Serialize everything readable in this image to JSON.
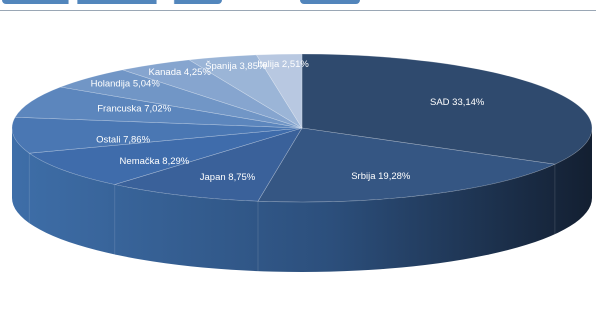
{
  "chart_data": {
    "type": "pie",
    "style": "3d-exploded-none",
    "start_angle_deg": 0,
    "direction": "clockwise",
    "slices": [
      {
        "label": "SAD 33,14%",
        "value": 33.14,
        "color": "#2f4a6e"
      },
      {
        "label": "Srbija 19,28%",
        "value": 19.28,
        "color": "#355683"
      },
      {
        "label": "Japan 8,75%",
        "value": 8.75,
        "color": "#3a619a"
      },
      {
        "label": "Nemačka 8,29%",
        "value": 8.29,
        "color": "#3f6cab"
      },
      {
        "label": "Ostali 7,86%",
        "value": 7.86,
        "color": "#4a77b3"
      },
      {
        "label": "Francuska  7,02%",
        "value": 7.02,
        "color": "#5c86bd"
      },
      {
        "label": "Holandija 5,04%",
        "value": 5.04,
        "color": "#7196c6"
      },
      {
        "label": "Kanada 4,25%",
        "value": 4.25,
        "color": "#86a5cf"
      },
      {
        "label": "Španija 3,85%",
        "value": 3.85,
        "color": "#9bb5d7"
      },
      {
        "label": "Italija 2,51%",
        "value": 2.51,
        "color": "#b8c8e1"
      }
    ]
  }
}
